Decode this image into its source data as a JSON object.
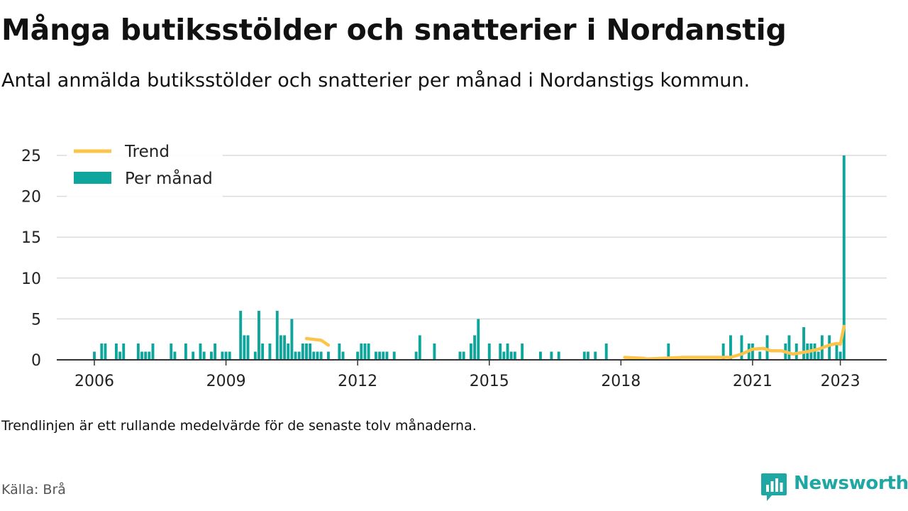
{
  "header": {
    "title": "Många butiksstölder och snatterier i Nordanstig",
    "subtitle": "Antal anmälda butiksstölder och snatterier per månad i Nordanstigs kommun."
  },
  "footer": {
    "note": "Trendlinjen är ett rullande medelvärde för de senaste tolv månaderna.",
    "source": "Källa: Brå",
    "brand": "Newsworthy"
  },
  "colors": {
    "bar": "#0ea59c",
    "trend": "#fcc44a",
    "grid": "#dcdcdc",
    "axis": "#333333",
    "brand": "#1fa7a3"
  },
  "chart_data": {
    "type": "bar",
    "x_type": "month",
    "xlim": [
      "2005-01",
      "2024-01"
    ],
    "ylim": [
      0,
      25
    ],
    "yticks": [
      0,
      5,
      10,
      15,
      20,
      25
    ],
    "xticks": [
      {
        "date": "2006-01",
        "label": "2006"
      },
      {
        "date": "2009-01",
        "label": "2009"
      },
      {
        "date": "2012-01",
        "label": "2012"
      },
      {
        "date": "2015-01",
        "label": "2015"
      },
      {
        "date": "2018-01",
        "label": "2018"
      },
      {
        "date": "2021-01",
        "label": "2021"
      },
      {
        "date": "2023-01",
        "label": "2023"
      }
    ],
    "grid": true,
    "legend": {
      "position": "top-left",
      "items": [
        {
          "label": "Trend",
          "kind": "line"
        },
        {
          "label": "Per månad",
          "kind": "bar"
        }
      ]
    },
    "series": [
      {
        "name": "Per månad",
        "kind": "bar",
        "points": [
          [
            "2006-01",
            1
          ],
          [
            "2006-03",
            2
          ],
          [
            "2006-04",
            2
          ],
          [
            "2006-07",
            2
          ],
          [
            "2006-08",
            1
          ],
          [
            "2006-09",
            2
          ],
          [
            "2007-01",
            2
          ],
          [
            "2007-02",
            1
          ],
          [
            "2007-03",
            1
          ],
          [
            "2007-04",
            1
          ],
          [
            "2007-05",
            2
          ],
          [
            "2007-10",
            2
          ],
          [
            "2007-11",
            1
          ],
          [
            "2008-02",
            2
          ],
          [
            "2008-04",
            1
          ],
          [
            "2008-06",
            2
          ],
          [
            "2008-07",
            1
          ],
          [
            "2008-09",
            1
          ],
          [
            "2008-10",
            2
          ],
          [
            "2008-12",
            1
          ],
          [
            "2009-01",
            1
          ],
          [
            "2009-02",
            1
          ],
          [
            "2009-05",
            6
          ],
          [
            "2009-06",
            3
          ],
          [
            "2009-07",
            3
          ],
          [
            "2009-09",
            1
          ],
          [
            "2009-10",
            6
          ],
          [
            "2009-11",
            2
          ],
          [
            "2010-01",
            2
          ],
          [
            "2010-03",
            6
          ],
          [
            "2010-04",
            3
          ],
          [
            "2010-05",
            3
          ],
          [
            "2010-06",
            2
          ],
          [
            "2010-07",
            5
          ],
          [
            "2010-08",
            1
          ],
          [
            "2010-09",
            1
          ],
          [
            "2010-10",
            2
          ],
          [
            "2010-11",
            2
          ],
          [
            "2010-12",
            2
          ],
          [
            "2011-01",
            1
          ],
          [
            "2011-02",
            1
          ],
          [
            "2011-03",
            1
          ],
          [
            "2011-05",
            1
          ],
          [
            "2011-08",
            2
          ],
          [
            "2011-09",
            1
          ],
          [
            "2012-01",
            1
          ],
          [
            "2012-02",
            2
          ],
          [
            "2012-03",
            2
          ],
          [
            "2012-04",
            2
          ],
          [
            "2012-06",
            1
          ],
          [
            "2012-07",
            1
          ],
          [
            "2012-08",
            1
          ],
          [
            "2012-09",
            1
          ],
          [
            "2012-11",
            1
          ],
          [
            "2013-05",
            1
          ],
          [
            "2013-06",
            3
          ],
          [
            "2013-10",
            2
          ],
          [
            "2014-05",
            1
          ],
          [
            "2014-06",
            1
          ],
          [
            "2014-08",
            2
          ],
          [
            "2014-09",
            3
          ],
          [
            "2014-10",
            5
          ],
          [
            "2015-01",
            2
          ],
          [
            "2015-04",
            2
          ],
          [
            "2015-05",
            1
          ],
          [
            "2015-06",
            2
          ],
          [
            "2015-07",
            1
          ],
          [
            "2015-08",
            1
          ],
          [
            "2015-10",
            2
          ],
          [
            "2016-03",
            1
          ],
          [
            "2016-06",
            1
          ],
          [
            "2016-08",
            1
          ],
          [
            "2017-03",
            1
          ],
          [
            "2017-04",
            1
          ],
          [
            "2017-06",
            1
          ],
          [
            "2017-09",
            2
          ],
          [
            "2019-02",
            2
          ],
          [
            "2020-05",
            2
          ],
          [
            "2020-07",
            3
          ],
          [
            "2020-10",
            3
          ],
          [
            "2020-12",
            2
          ],
          [
            "2021-01",
            2
          ],
          [
            "2021-03",
            1
          ],
          [
            "2021-05",
            3
          ],
          [
            "2021-10",
            2
          ],
          [
            "2021-11",
            3
          ],
          [
            "2022-01",
            2
          ],
          [
            "2022-03",
            4
          ],
          [
            "2022-04",
            2
          ],
          [
            "2022-05",
            2
          ],
          [
            "2022-06",
            2
          ],
          [
            "2022-07",
            1
          ],
          [
            "2022-08",
            3
          ],
          [
            "2022-10",
            3
          ],
          [
            "2022-12",
            2
          ],
          [
            "2023-01",
            1
          ],
          [
            "2023-02",
            25
          ]
        ]
      },
      {
        "name": "Trend",
        "kind": "line",
        "segments": [
          [
            [
              "2010-11",
              2.6
            ],
            [
              "2011-01",
              2.5
            ],
            [
              "2011-03",
              2.4
            ],
            [
              "2011-04",
              2.1
            ],
            [
              "2011-05",
              1.8
            ]
          ],
          [
            [
              "2018-02",
              0.3
            ],
            [
              "2018-04",
              0.25
            ],
            [
              "2018-07",
              0.2
            ],
            [
              "2018-08",
              0.1
            ],
            [
              "2019-01",
              0.2
            ],
            [
              "2019-06",
              0.3
            ],
            [
              "2020-01",
              0.3
            ],
            [
              "2020-07",
              0.3
            ],
            [
              "2020-10",
              0.7
            ],
            [
              "2021-01",
              1.3
            ],
            [
              "2021-04",
              1.4
            ],
            [
              "2021-06",
              1.1
            ],
            [
              "2021-09",
              1.1
            ],
            [
              "2021-12",
              0.7
            ],
            [
              "2022-04",
              1.0
            ],
            [
              "2022-07",
              1.3
            ],
            [
              "2022-10",
              1.8
            ],
            [
              "2022-12",
              2.0
            ],
            [
              "2023-01",
              1.9
            ],
            [
              "2023-02",
              4.1
            ]
          ]
        ]
      }
    ]
  }
}
